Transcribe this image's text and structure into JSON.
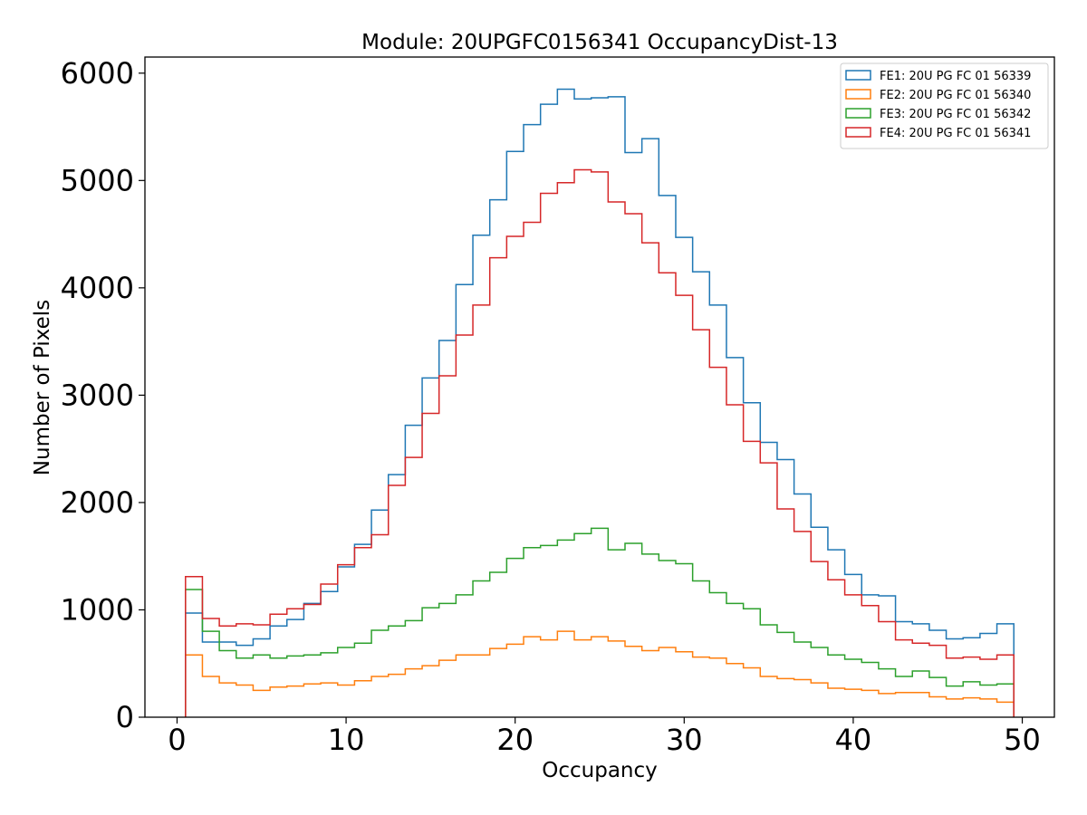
{
  "chart_data": {
    "type": "histogram-step",
    "title": "Module: 20UPGFC0156341 OccupancyDist-13",
    "xlabel": "Occupancy",
    "ylabel": "Number of Pixels",
    "xlim": [
      -1.9,
      51.9
    ],
    "ylim": [
      0,
      6150
    ],
    "xticks": [
      0,
      10,
      20,
      30,
      40,
      50
    ],
    "yticks": [
      0,
      1000,
      2000,
      3000,
      4000,
      5000,
      6000
    ],
    "bin_start": 0.5,
    "bin_width": 1,
    "grid": false,
    "legend_position": "top-right",
    "series": [
      {
        "name": "FE1: 20U PG FC 01 56339",
        "color": "#1f77b4",
        "values": [
          970,
          700,
          700,
          670,
          730,
          850,
          910,
          1060,
          1170,
          1400,
          1610,
          1930,
          2260,
          2720,
          3160,
          3510,
          4030,
          4490,
          4820,
          5270,
          5520,
          5710,
          5850,
          5760,
          5770,
          5780,
          5260,
          5390,
          4860,
          4470,
          4150,
          3840,
          3350,
          2930,
          2560,
          2400,
          2080,
          1770,
          1560,
          1330,
          1140,
          1130,
          890,
          870,
          810,
          730,
          740,
          780,
          870
        ]
      },
      {
        "name": "FE2: 20U PG FC 01 56340",
        "color": "#ff7f0e",
        "values": [
          580,
          380,
          320,
          300,
          250,
          280,
          290,
          310,
          320,
          300,
          340,
          380,
          400,
          450,
          480,
          530,
          580,
          580,
          640,
          680,
          750,
          720,
          800,
          720,
          750,
          710,
          660,
          620,
          650,
          610,
          560,
          550,
          500,
          460,
          380,
          360,
          350,
          320,
          270,
          260,
          250,
          220,
          230,
          230,
          190,
          170,
          180,
          170,
          140
        ]
      },
      {
        "name": "FE3: 20U PG FC 01 56342",
        "color": "#2ca02c",
        "values": [
          1190,
          800,
          620,
          550,
          580,
          550,
          570,
          580,
          600,
          650,
          690,
          810,
          850,
          900,
          1020,
          1060,
          1140,
          1270,
          1350,
          1480,
          1580,
          1600,
          1650,
          1710,
          1760,
          1560,
          1620,
          1520,
          1460,
          1430,
          1270,
          1160,
          1060,
          1010,
          860,
          790,
          700,
          650,
          580,
          540,
          510,
          450,
          380,
          430,
          370,
          290,
          330,
          300,
          310
        ]
      },
      {
        "name": "FE4: 20U PG FC 01 56341",
        "color": "#d62728",
        "values": [
          1310,
          920,
          850,
          870,
          860,
          960,
          1010,
          1050,
          1240,
          1420,
          1580,
          1700,
          2160,
          2420,
          2830,
          3180,
          3560,
          3840,
          4280,
          4480,
          4610,
          4880,
          4980,
          5100,
          5080,
          4800,
          4690,
          4420,
          4140,
          3930,
          3610,
          3260,
          2910,
          2570,
          2370,
          1940,
          1730,
          1450,
          1280,
          1140,
          1040,
          890,
          720,
          690,
          670,
          550,
          560,
          540,
          580
        ]
      }
    ]
  }
}
